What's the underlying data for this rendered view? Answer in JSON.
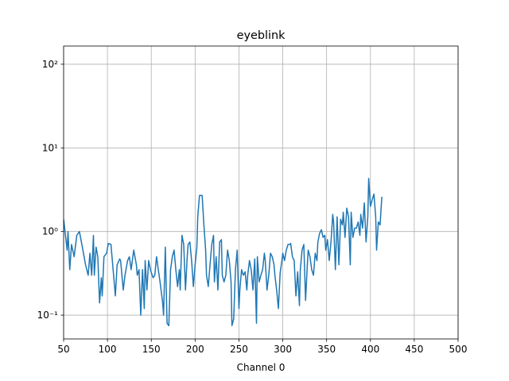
{
  "chart_data": {
    "type": "line",
    "title": "eyeblink",
    "xlabel": "Channel 0",
    "xlim": [
      50,
      500
    ],
    "xticks": [
      50,
      100,
      150,
      200,
      250,
      300,
      350,
      400,
      450,
      500
    ],
    "ylim": [
      0.052,
      165
    ],
    "yscale": "log",
    "yticks": [
      {
        "value": 0.1,
        "label": "10⁻¹"
      },
      {
        "value": 1,
        "label": "10⁰"
      },
      {
        "value": 10,
        "label": "10¹"
      },
      {
        "value": 100,
        "label": "10²"
      }
    ],
    "grid": true,
    "series": [
      {
        "color": "#1f77b4",
        "x": [
          50,
          54,
          55,
          57,
          59,
          62,
          65,
          68,
          72,
          75,
          78,
          80,
          82,
          84,
          85,
          87,
          89,
          91,
          93,
          94,
          96,
          99,
          101,
          104,
          107,
          109,
          111,
          114,
          115,
          118,
          120,
          123,
          125,
          127,
          130,
          133,
          134,
          136,
          138,
          140,
          142,
          143,
          145,
          147,
          149,
          152,
          154,
          156,
          158,
          160,
          163,
          164,
          166,
          168,
          170,
          172,
          174,
          176,
          178,
          180,
          182,
          183,
          185,
          187,
          189,
          191,
          192,
          194,
          196,
          198,
          200,
          202,
          203,
          205,
          208,
          210,
          212,
          213,
          215,
          217,
          219,
          221,
          222,
          224,
          226,
          228,
          230,
          231,
          233,
          235,
          237,
          239,
          241,
          242,
          244,
          246,
          248,
          250,
          251,
          253,
          255,
          257,
          259,
          260,
          262,
          264,
          266,
          268,
          270,
          271,
          273,
          275,
          277,
          279,
          280,
          282,
          284,
          286,
          288,
          290,
          291,
          293,
          295,
          297,
          299,
          300,
          302,
          304,
          306,
          308,
          309,
          311,
          313,
          315,
          317,
          319,
          320,
          322,
          324,
          326,
          328,
          329,
          331,
          333,
          335,
          337,
          339,
          340,
          342,
          344,
          346,
          348,
          349,
          351,
          353,
          355,
          357,
          358,
          360,
          362,
          364,
          366,
          368,
          369,
          371,
          373,
          375,
          377,
          378,
          380,
          382,
          384,
          386,
          388,
          389,
          391,
          393,
          395,
          397,
          398,
          400,
          402,
          404,
          406,
          407,
          409,
          411,
          413
        ],
        "values": [
          1.4,
          0.6,
          1.0,
          0.35,
          0.7,
          0.5,
          0.9,
          1.0,
          0.6,
          0.4,
          0.3,
          0.55,
          0.3,
          0.9,
          0.3,
          0.65,
          0.5,
          0.14,
          0.28,
          0.17,
          0.5,
          0.55,
          0.72,
          0.7,
          0.3,
          0.17,
          0.4,
          0.47,
          0.45,
          0.2,
          0.3,
          0.45,
          0.5,
          0.35,
          0.6,
          0.4,
          0.3,
          0.35,
          0.1,
          0.35,
          0.12,
          0.45,
          0.2,
          0.45,
          0.35,
          0.28,
          0.3,
          0.5,
          0.35,
          0.25,
          0.14,
          0.1,
          0.65,
          0.08,
          0.075,
          0.35,
          0.5,
          0.6,
          0.35,
          0.22,
          0.35,
          0.2,
          0.9,
          0.7,
          0.2,
          0.5,
          0.7,
          0.75,
          0.45,
          0.22,
          0.4,
          0.65,
          1.5,
          2.7,
          2.7,
          1.2,
          0.6,
          0.3,
          0.22,
          0.4,
          0.7,
          0.9,
          0.25,
          0.5,
          0.2,
          0.75,
          0.8,
          0.3,
          0.25,
          0.3,
          0.6,
          0.45,
          0.25,
          0.075,
          0.09,
          0.35,
          0.6,
          0.12,
          0.2,
          0.35,
          0.3,
          0.33,
          0.2,
          0.3,
          0.45,
          0.35,
          0.2,
          0.47,
          0.08,
          0.5,
          0.25,
          0.3,
          0.35,
          0.55,
          0.45,
          0.2,
          0.3,
          0.55,
          0.5,
          0.4,
          0.3,
          0.2,
          0.12,
          0.32,
          0.45,
          0.55,
          0.45,
          0.6,
          0.7,
          0.7,
          0.72,
          0.5,
          0.45,
          0.17,
          0.33,
          0.13,
          0.35,
          0.6,
          0.7,
          0.15,
          0.4,
          0.6,
          0.5,
          0.35,
          0.3,
          0.55,
          0.45,
          0.75,
          0.95,
          1.05,
          0.85,
          0.9,
          0.6,
          0.8,
          0.45,
          0.75,
          1.6,
          1.3,
          0.35,
          1.5,
          0.4,
          1.4,
          1.2,
          1.7,
          0.85,
          1.9,
          1.5,
          0.4,
          1.7,
          0.85,
          1.1,
          1.1,
          1.3,
          0.9,
          1.6,
          1.1,
          2.2,
          0.75,
          1.5,
          4.3,
          2.0,
          2.4,
          2.8,
          1.5,
          0.6,
          1.3,
          1.2,
          2.6
        ]
      }
    ]
  }
}
